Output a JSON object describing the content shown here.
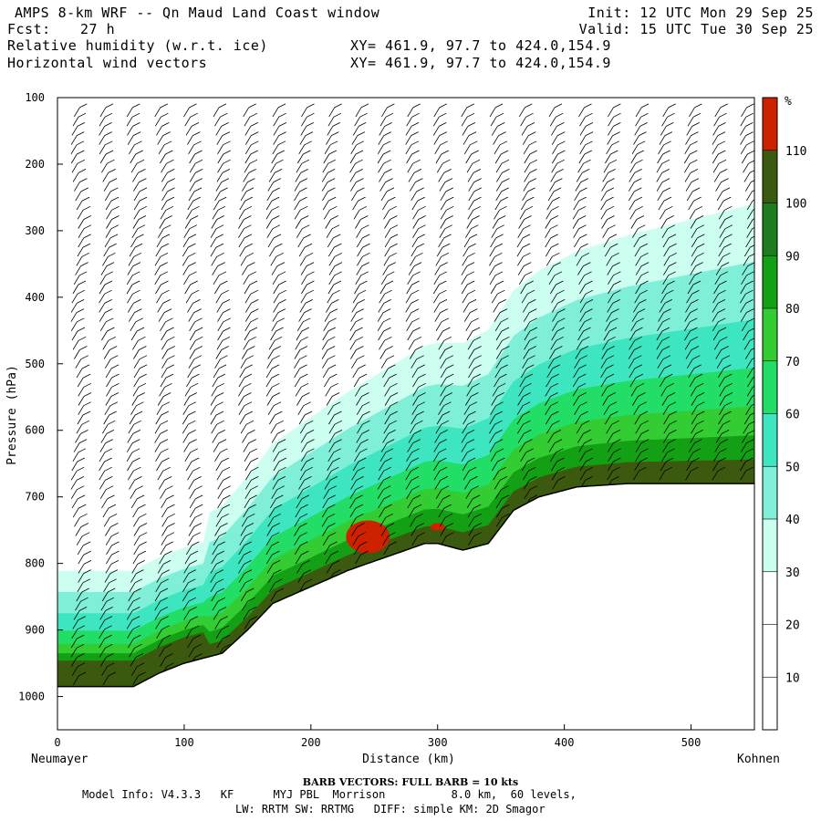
{
  "header": {
    "title": "AMPS 8-km WRF -- Qn Maud Land Coast window",
    "forecast_label": "Fcst:",
    "forecast_value": "27 h",
    "init": "Init: 12 UTC Mon 29 Sep 25",
    "valid": "Valid: 15 UTC Tue 30 Sep 25",
    "field1": "Relative humidity (w.r.t. ice)",
    "field2": "Horizontal wind vectors",
    "xy1": "XY= 461.9, 97.7 to 424.0,154.9",
    "xy2": "XY= 461.9, 97.7 to 424.0,154.9"
  },
  "chart_data": {
    "type": "heatmap",
    "title": "Cross-section: Relative humidity (w.r.t. ice) and horizontal wind vectors",
    "xlabel": "Distance (km)",
    "ylabel": "Pressure (hPa)",
    "xlim": [
      0,
      550
    ],
    "ylim": [
      1050,
      100
    ],
    "x_ticks": [
      0,
      100,
      200,
      300,
      400,
      500
    ],
    "y_ticks": [
      100,
      200,
      300,
      400,
      500,
      600,
      700,
      800,
      900,
      1000
    ],
    "left_endpoint": "Neumayer",
    "right_endpoint": "Kohnen",
    "colorbar_unit": "%",
    "colorbar_levels": [
      10,
      20,
      30,
      40,
      50,
      60,
      70,
      80,
      90,
      100,
      110
    ],
    "colorbar_colors": [
      "#ffffff",
      "#ffffff",
      "#ffffff",
      "#ccfff0",
      "#7fefd8",
      "#3de6c0",
      "#22dd66",
      "#33cc33",
      "#14a014",
      "#1e7d1e",
      "#3c5a0f",
      "#cc2200"
    ],
    "terrain": [
      [
        0,
        985
      ],
      [
        60,
        985
      ],
      [
        80,
        965
      ],
      [
        100,
        950
      ],
      [
        130,
        935
      ],
      [
        150,
        900
      ],
      [
        170,
        860
      ],
      [
        200,
        835
      ],
      [
        230,
        810
      ],
      [
        260,
        790
      ],
      [
        290,
        770
      ],
      [
        300,
        770
      ],
      [
        320,
        780
      ],
      [
        340,
        770
      ],
      [
        360,
        720
      ],
      [
        380,
        700
      ],
      [
        410,
        685
      ],
      [
        450,
        680
      ],
      [
        550,
        680
      ]
    ],
    "barb_spacing_km": 22,
    "barb_legend": "BARB VECTORS: FULL BARB = 10 kts"
  },
  "footer": {
    "barb_note": "BARB VECTORS:  FULL BARB = 10 kts",
    "line1": "Model Info: V4.3.3   KF      MYJ PBL  Morrison          8.0 km,  60 levels,",
    "line2": "LW: RRTM SW: RRTMG   DIFF: simple KM: 2D Smagor"
  }
}
